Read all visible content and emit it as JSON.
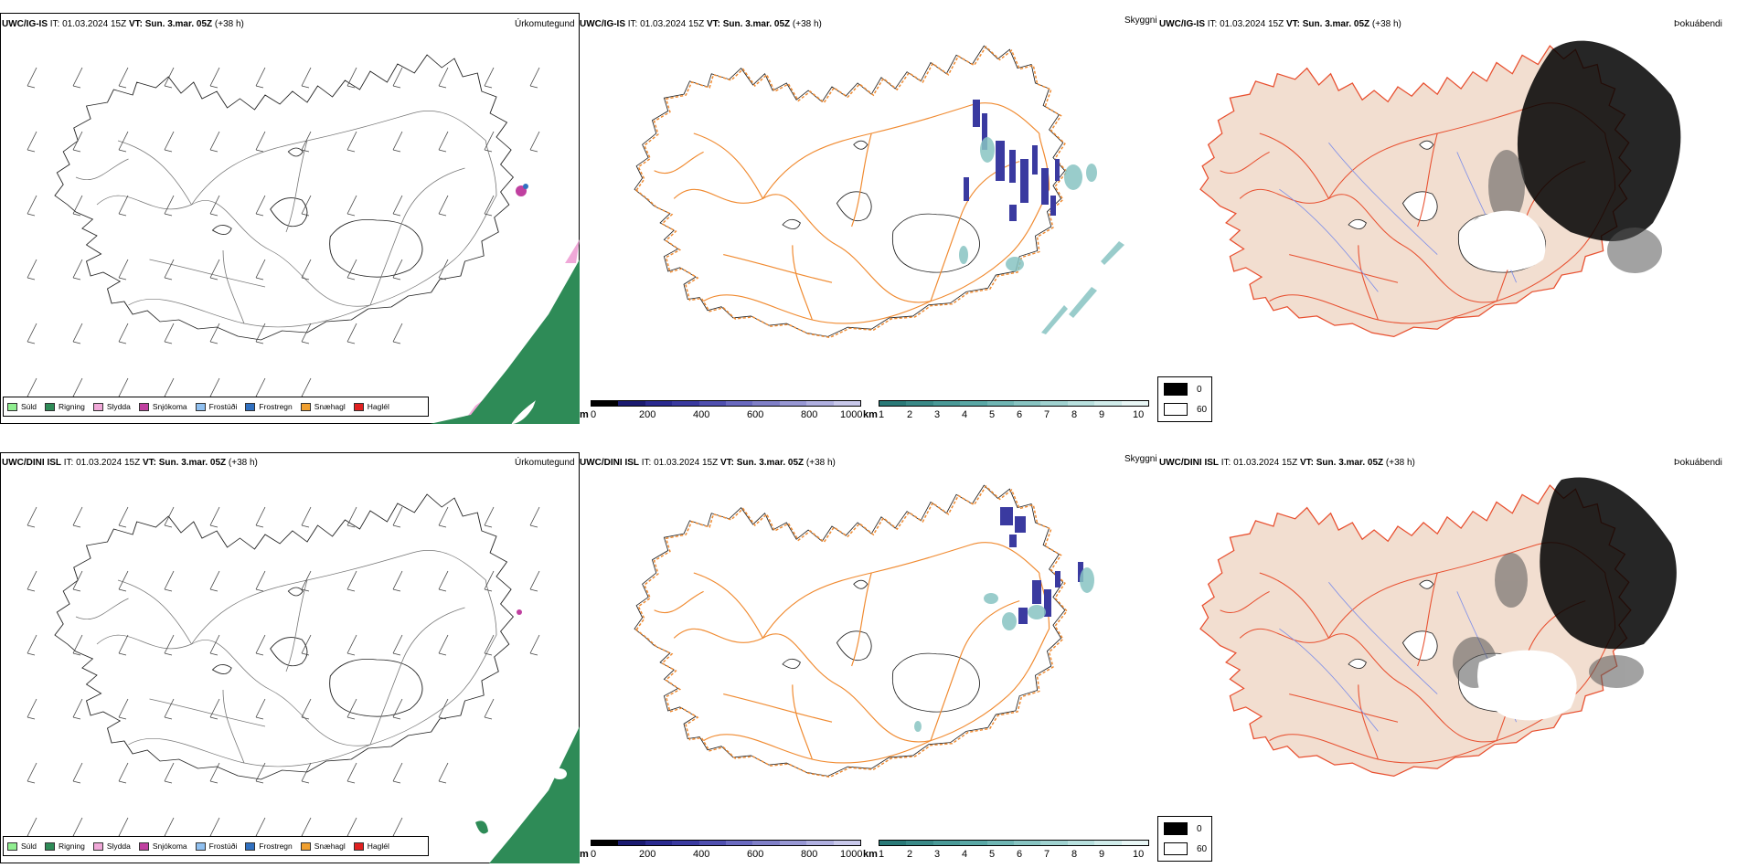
{
  "rows": [
    {
      "model": "UWC/IG-IS",
      "it_label": "IT:",
      "it_value": "01.03.2024 15Z",
      "vt_label": "VT:",
      "vt_value": "Sun. 3.mar. 05Z",
      "lead": "(+38 h)"
    },
    {
      "model": "UWC/DINI ISL",
      "it_label": "IT:",
      "it_value": "01.03.2024 15Z",
      "vt_label": "VT:",
      "vt_value": "Sun. 3.mar. 05Z",
      "lead": "(+38 h)"
    }
  ],
  "panel_titles": {
    "precip": "Úrkomutegund",
    "visibility": "Skyggni",
    "fog": "Þokuábendi"
  },
  "precip_legend": [
    {
      "label": "Súld",
      "color": "#90ee90"
    },
    {
      "label": "Rigning",
      "color": "#2e8b57"
    },
    {
      "label": "Slydda",
      "color": "#f0a8d8"
    },
    {
      "label": "Snjókoma",
      "color": "#c040a0"
    },
    {
      "label": "Frostúði",
      "color": "#90c0f0"
    },
    {
      "label": "Frostregn",
      "color": "#3070c0"
    },
    {
      "label": "Snæhagl",
      "color": "#f0a030"
    },
    {
      "label": "Haglél",
      "color": "#e02020"
    }
  ],
  "visibility_scale_m": {
    "unit": "m",
    "ticks": [
      "0",
      "200",
      "400",
      "600",
      "800",
      "1000"
    ],
    "colors": [
      "#000000",
      "#1a1a70",
      "#2a2a90",
      "#3a3aa0",
      "#5050b0",
      "#6a6ac0",
      "#8080c8",
      "#9898d4",
      "#b0b0e0",
      "#c8c8ea"
    ]
  },
  "visibility_scale_km": {
    "unit": "km",
    "ticks": [
      "1",
      "2",
      "3",
      "4",
      "5",
      "6",
      "7",
      "8",
      "9",
      "10"
    ],
    "colors": [
      "#2a7a78",
      "#3a8a88",
      "#4a9a98",
      "#5aa8a6",
      "#70b6b4",
      "#88c4c2",
      "#a0d2d0",
      "#b8e0de",
      "#d0ecea",
      "#e8f6f5"
    ]
  },
  "fog_legend": {
    "items": [
      {
        "label": "0",
        "color": "#000000"
      },
      {
        "label": "60",
        "color": "#ffffff"
      }
    ]
  },
  "colors": {
    "coast": "#222222",
    "roads": "#f08a30",
    "land_fog": "#f2ded0",
    "rivers": "#8090e8",
    "fog_roads": "#e85030",
    "snow_pink": "#f0a8d8",
    "rain_green": "#2e8b57",
    "vis_blue": "#3a3aa0",
    "vis_teal": "#88c4c2"
  }
}
